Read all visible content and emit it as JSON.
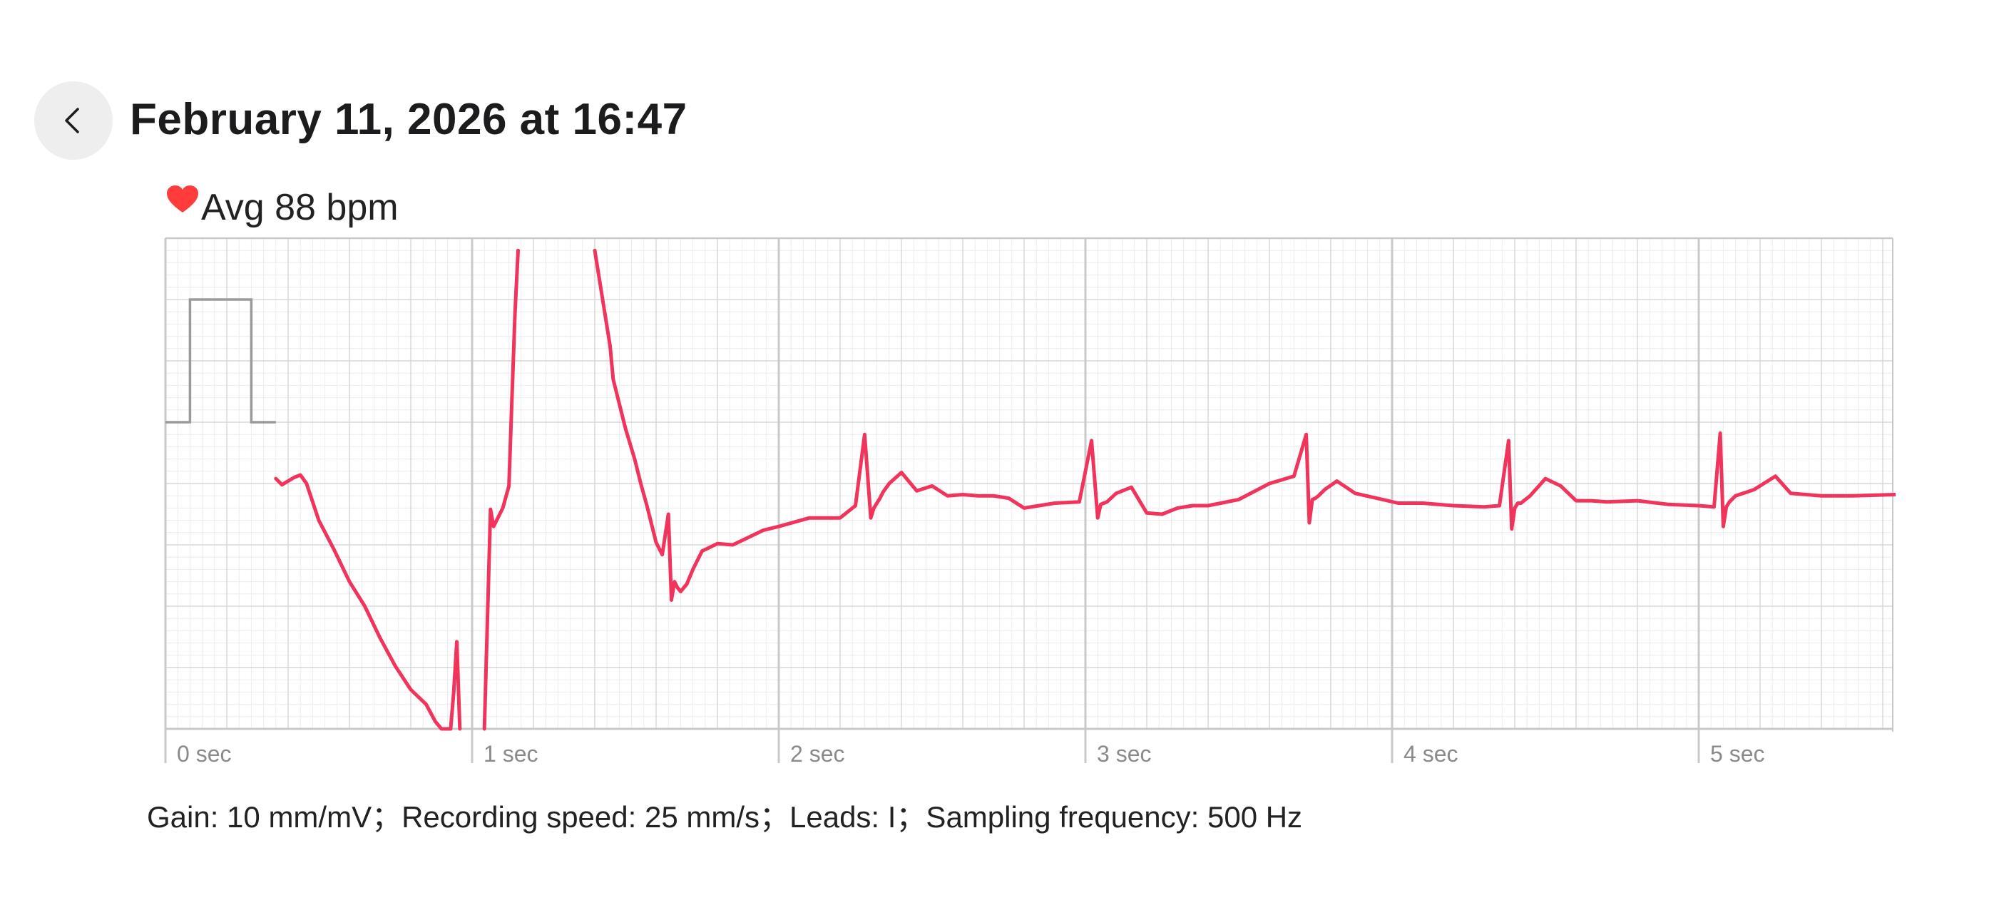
{
  "header": {
    "title": "February 11, 2026 at 16:47"
  },
  "summary": {
    "heart_rate_text": "Avg 88 bpm",
    "heart_icon": "heart-icon",
    "heart_color": "#ff3b3b"
  },
  "footer": {
    "info": "Gain: 10 mm/mV；Recording speed: 25 mm/s；Leads: I；Sampling frequency: 500 Hz"
  },
  "chart_data": {
    "type": "line",
    "xlabel": "",
    "ylabel": "",
    "x_ticks": [
      "0 sec",
      "1 sec",
      "2 sec",
      "3 sec",
      "4 sec",
      "5 sec"
    ],
    "xlim": [
      0,
      5.64
    ],
    "ylim": [
      -2.5,
      1.5
    ],
    "grid": true,
    "line_color": "#f0345b",
    "grid_major_color": "#c9c9c9",
    "grid_minor_color": "#ececec",
    "calibration_pulse": {
      "baseline_mv": 0,
      "amplitude_mv": 1.0,
      "start_s": 0.08,
      "end_s": 0.28,
      "stop_s": 0.36
    },
    "series": [
      {
        "x": [
          0.36,
          0.38,
          0.42,
          0.44,
          0.46,
          0.5,
          0.55,
          0.6,
          0.65,
          0.7,
          0.75,
          0.8,
          0.85,
          0.88,
          0.9,
          0.93,
          0.94,
          0.95,
          0.96
        ],
        "y": [
          -0.46,
          -0.51,
          -0.45,
          -0.43,
          -0.5,
          -0.8,
          -1.04,
          -1.3,
          -1.5,
          -1.76,
          -1.99,
          -2.18,
          -2.3,
          -2.44,
          -2.5,
          -2.5,
          -2.2,
          -1.79,
          -2.5
        ]
      },
      {
        "x": [
          1.04,
          1.06,
          1.07,
          1.08,
          1.1,
          1.12,
          1.13,
          1.14,
          1.15
        ],
        "y": [
          -2.5,
          -0.71,
          -0.85,
          -0.8,
          -0.7,
          -0.52,
          0.2,
          0.9,
          1.4
        ]
      },
      {
        "x": [
          1.4,
          1.45,
          1.46,
          1.48,
          1.5,
          1.53,
          1.55,
          1.57,
          1.6,
          1.62,
          1.64,
          1.65,
          1.66,
          1.67,
          1.68,
          1.7,
          1.72,
          1.75,
          1.8,
          1.85,
          1.9,
          1.95,
          2.0,
          2.1,
          2.2,
          2.25,
          2.28,
          2.3,
          2.31,
          2.32,
          2.33,
          2.34,
          2.36,
          2.4,
          2.45,
          2.5,
          2.55,
          2.6,
          2.65,
          2.7,
          2.75,
          2.8,
          2.9,
          2.98,
          3.02,
          3.04,
          3.05,
          3.06,
          3.07,
          3.1,
          3.15,
          3.2,
          3.25,
          3.3,
          3.35,
          3.4,
          3.5,
          3.6,
          3.68,
          3.72,
          3.73,
          3.74,
          3.75,
          3.76,
          3.78,
          3.82,
          3.88,
          3.95,
          4.02,
          4.1,
          4.2,
          4.3,
          4.35,
          4.38,
          4.39,
          4.4,
          4.41,
          4.42,
          4.45,
          4.5,
          4.55,
          4.6,
          4.65,
          4.7,
          4.8,
          4.9,
          5.0,
          5.05,
          5.07,
          5.08,
          5.09,
          5.1,
          5.12,
          5.18,
          5.25,
          5.3,
          5.4,
          5.5,
          5.64
        ],
        "y": [
          1.4,
          0.62,
          0.35,
          0.15,
          -0.05,
          -0.3,
          -0.5,
          -0.68,
          -0.98,
          -1.08,
          -0.75,
          -1.45,
          -1.3,
          -1.35,
          -1.38,
          -1.32,
          -1.2,
          -1.05,
          -0.99,
          -1.0,
          -0.94,
          -0.88,
          -0.85,
          -0.78,
          -0.78,
          -0.68,
          -0.1,
          -0.78,
          -0.7,
          -0.66,
          -0.62,
          -0.57,
          -0.5,
          -0.41,
          -0.56,
          -0.52,
          -0.6,
          -0.59,
          -0.6,
          -0.6,
          -0.62,
          -0.7,
          -0.66,
          -0.65,
          -0.15,
          -0.78,
          -0.67,
          -0.66,
          -0.65,
          -0.58,
          -0.53,
          -0.74,
          -0.75,
          -0.7,
          -0.68,
          -0.68,
          -0.63,
          -0.5,
          -0.44,
          -0.1,
          -0.82,
          -0.63,
          -0.62,
          -0.6,
          -0.55,
          -0.48,
          -0.58,
          -0.62,
          -0.66,
          -0.66,
          -0.68,
          -0.69,
          -0.68,
          -0.15,
          -0.87,
          -0.7,
          -0.66,
          -0.66,
          -0.6,
          -0.46,
          -0.52,
          -0.64,
          -0.64,
          -0.65,
          -0.64,
          -0.67,
          -0.68,
          -0.69,
          -0.09,
          -0.85,
          -0.69,
          -0.65,
          -0.6,
          -0.55,
          -0.44,
          -0.58,
          -0.6,
          -0.6,
          -0.59
        ]
      }
    ]
  }
}
